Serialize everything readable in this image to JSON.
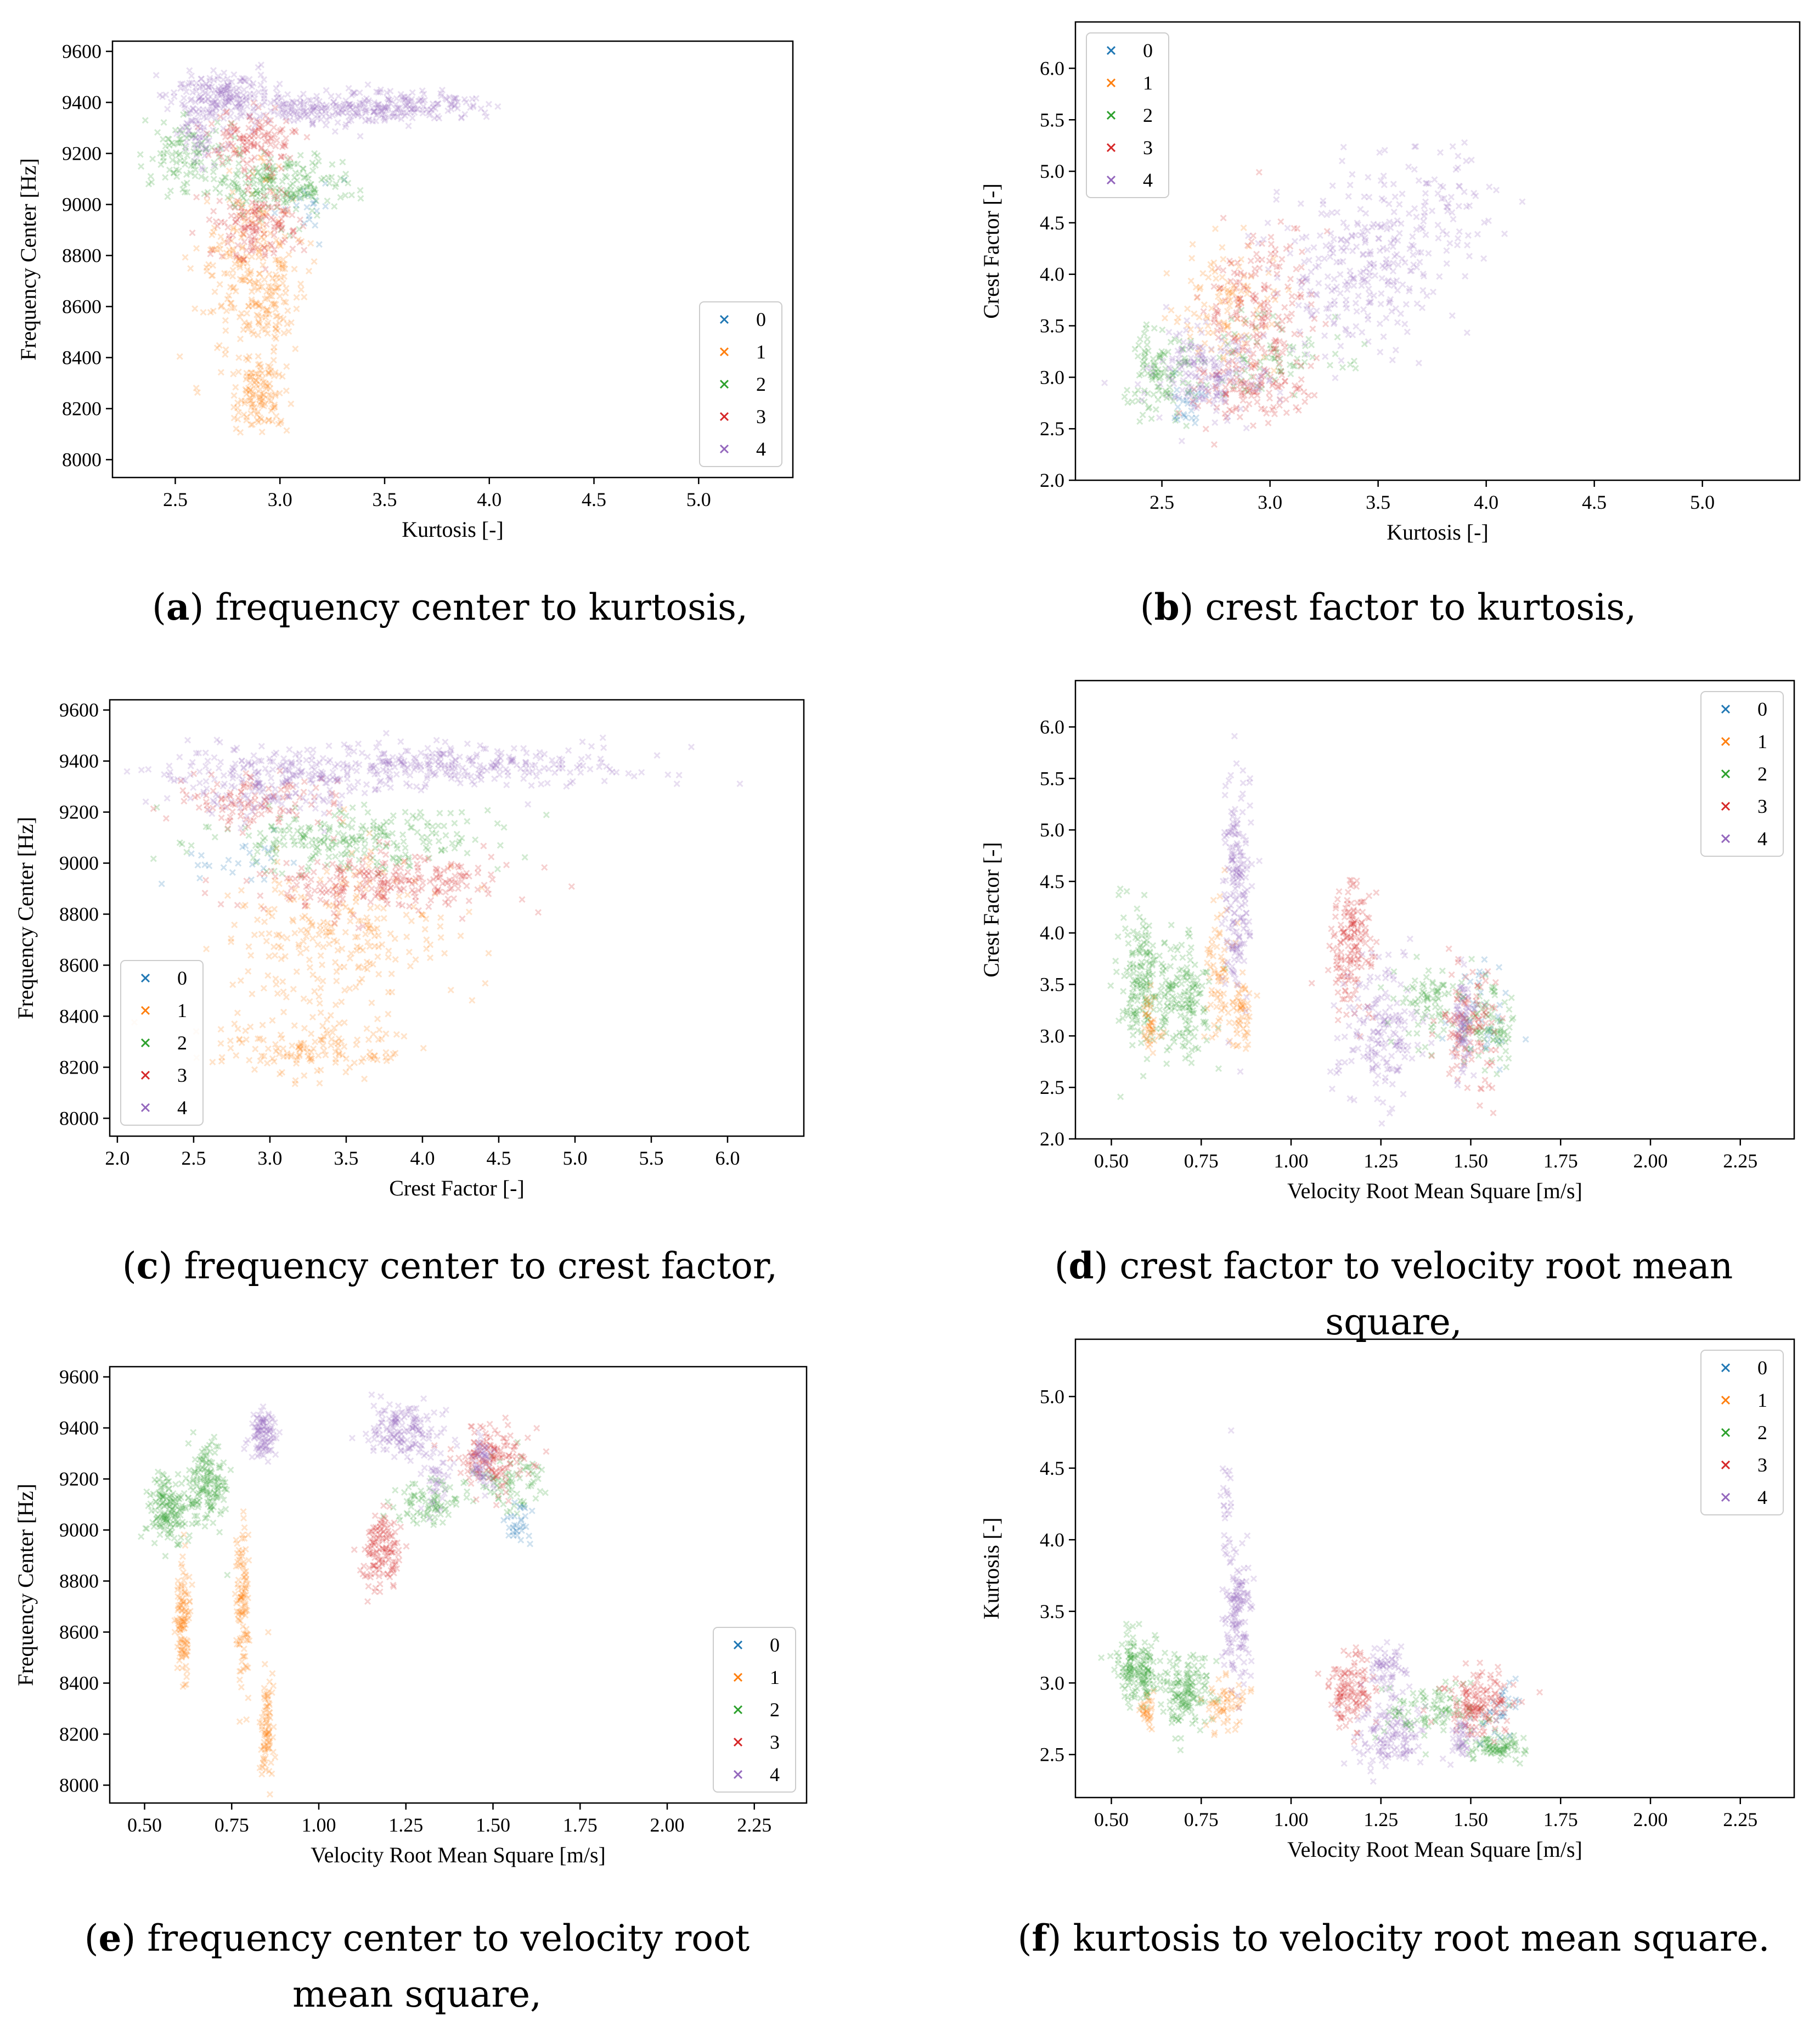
{
  "colors": {
    "0": "#1f77b4",
    "1": "#ff7f0e",
    "2": "#2ca02c",
    "3": "#d62728",
    "4": "#9467bd"
  },
  "chart_data": [
    {
      "id": "a",
      "type": "scatter",
      "xlabel": "Kurtosis [-]",
      "ylabel": "Frequency Center [Hz]",
      "xlim": [
        2.2,
        5.45
      ],
      "ylim": [
        7930,
        9640
      ],
      "xticks": [
        2.5,
        3.0,
        3.5,
        4.0,
        4.5,
        5.0
      ],
      "xtick_labels": [
        "2.5",
        "3.0",
        "3.5",
        "4.0",
        "4.5",
        "5.0"
      ],
      "yticks": [
        8000,
        8200,
        8400,
        8600,
        8800,
        9000,
        9200,
        9400,
        9600
      ],
      "ytick_labels": [
        "8000",
        "8200",
        "8400",
        "8600",
        "8800",
        "9000",
        "9200",
        "9400",
        "9600"
      ],
      "legend": {
        "position": "bottom-right",
        "entries": [
          "0",
          "1",
          "2",
          "3",
          "4"
        ]
      },
      "clusters": [
        {
          "cls": 1,
          "x": 2.86,
          "y": 8750,
          "sx": 0.13,
          "sy": 170,
          "n": 230
        },
        {
          "cls": 1,
          "x": 2.9,
          "y": 8250,
          "sx": 0.07,
          "sy": 70,
          "n": 120
        },
        {
          "cls": 1,
          "x": 2.95,
          "y": 8580,
          "sx": 0.06,
          "sy": 80,
          "n": 60
        },
        {
          "cls": 0,
          "x": 3.15,
          "y": 9000,
          "sx": 0.08,
          "sy": 60,
          "n": 20
        },
        {
          "cls": 2,
          "x": 2.55,
          "y": 9200,
          "sx": 0.1,
          "sy": 70,
          "n": 100
        },
        {
          "cls": 2,
          "x": 3.0,
          "y": 9080,
          "sx": 0.18,
          "sy": 60,
          "n": 200
        },
        {
          "cls": 3,
          "x": 2.9,
          "y": 8920,
          "sx": 0.1,
          "sy": 70,
          "n": 140
        },
        {
          "cls": 3,
          "x": 2.88,
          "y": 9250,
          "sx": 0.1,
          "sy": 60,
          "n": 130
        },
        {
          "cls": 4,
          "x": 2.75,
          "y": 9430,
          "sx": 0.15,
          "sy": 45,
          "n": 160
        },
        {
          "cls": 4,
          "x": 3.3,
          "y": 9380,
          "sx": 0.3,
          "sy": 35,
          "n": 260
        },
        {
          "cls": 4,
          "x": 3.75,
          "y": 9390,
          "sx": 0.15,
          "sy": 30,
          "n": 60
        },
        {
          "cls": 4,
          "x": 2.62,
          "y": 9300,
          "sx": 0.06,
          "sy": 80,
          "n": 80
        }
      ]
    },
    {
      "id": "b",
      "type": "scatter",
      "xlabel": "Kurtosis [-]",
      "ylabel": "Crest Factor [-]",
      "xlim": [
        2.1,
        5.45
      ],
      "ylim": [
        2.0,
        6.45
      ],
      "xticks": [
        2.5,
        3.0,
        3.5,
        4.0,
        4.5,
        5.0
      ],
      "xtick_labels": [
        "2.5",
        "3.0",
        "3.5",
        "4.0",
        "4.5",
        "5.0"
      ],
      "yticks": [
        2.0,
        2.5,
        3.0,
        3.5,
        4.0,
        4.5,
        5.0,
        5.5,
        6.0
      ],
      "ytick_labels": [
        "2.0",
        "2.5",
        "3.0",
        "3.5",
        "4.0",
        "4.5",
        "5.0",
        "5.5",
        "6.0"
      ],
      "legend": {
        "position": "top-left",
        "entries": [
          "0",
          "1",
          "2",
          "3",
          "4"
        ]
      },
      "clusters": [
        {
          "cls": 0,
          "x": 2.62,
          "y": 2.75,
          "sx": 0.05,
          "sy": 0.15,
          "n": 25
        },
        {
          "cls": 1,
          "x": 2.8,
          "y": 3.65,
          "sx": 0.12,
          "sy": 0.3,
          "n": 110
        },
        {
          "cls": 2,
          "x": 2.5,
          "y": 3.05,
          "sx": 0.07,
          "sy": 0.25,
          "n": 110
        },
        {
          "cls": 2,
          "x": 3.0,
          "y": 3.2,
          "sx": 0.18,
          "sy": 0.2,
          "n": 80
        },
        {
          "cls": 3,
          "x": 2.95,
          "y": 3.55,
          "sx": 0.13,
          "sy": 0.45,
          "n": 210
        },
        {
          "cls": 3,
          "x": 2.9,
          "y": 2.85,
          "sx": 0.12,
          "sy": 0.12,
          "n": 80
        },
        {
          "cls": 4,
          "x": 3.4,
          "y": 4.0,
          "sx": 0.2,
          "sy": 0.35,
          "n": 260
        },
        {
          "cls": 4,
          "x": 2.7,
          "y": 3.0,
          "sx": 0.14,
          "sy": 0.22,
          "n": 180
        },
        {
          "cls": 4,
          "x": 3.75,
          "y": 4.7,
          "sx": 0.18,
          "sy": 0.25,
          "n": 90
        }
      ]
    },
    {
      "id": "c",
      "type": "scatter",
      "xlabel": "Crest Factor [-]",
      "ylabel": "Frequency Center [Hz]",
      "xlim": [
        1.95,
        6.5
      ],
      "ylim": [
        7930,
        9640
      ],
      "xticks": [
        2.0,
        2.5,
        3.0,
        3.5,
        4.0,
        4.5,
        5.0,
        5.5,
        6.0
      ],
      "xtick_labels": [
        "2.0",
        "2.5",
        "3.0",
        "3.5",
        "4.0",
        "4.5",
        "5.0",
        "5.5",
        "6.0"
      ],
      "yticks": [
        8000,
        8200,
        8400,
        8600,
        8800,
        9000,
        9200,
        9400,
        9600
      ],
      "ytick_labels": [
        "8000",
        "8200",
        "8400",
        "8600",
        "8800",
        "9000",
        "9200",
        "9400",
        "9600"
      ],
      "legend": {
        "position": "bottom-left",
        "entries": [
          "0",
          "1",
          "2",
          "3",
          "4"
        ]
      },
      "clusters": [
        {
          "cls": 0,
          "x": 2.8,
          "y": 9000,
          "sx": 0.2,
          "sy": 50,
          "n": 25
        },
        {
          "cls": 1,
          "x": 3.4,
          "y": 8700,
          "sx": 0.35,
          "sy": 170,
          "n": 260
        },
        {
          "cls": 1,
          "x": 3.25,
          "y": 8270,
          "sx": 0.35,
          "sy": 60,
          "n": 140
        },
        {
          "cls": 2,
          "x": 3.5,
          "y": 9100,
          "sx": 0.5,
          "sy": 60,
          "n": 240
        },
        {
          "cls": 3,
          "x": 3.75,
          "y": 8920,
          "sx": 0.45,
          "sy": 60,
          "n": 250
        },
        {
          "cls": 3,
          "x": 2.9,
          "y": 9240,
          "sx": 0.3,
          "sy": 50,
          "n": 110
        },
        {
          "cls": 4,
          "x": 3.9,
          "y": 9380,
          "sx": 0.8,
          "sy": 45,
          "n": 380
        },
        {
          "cls": 4,
          "x": 3.0,
          "y": 9290,
          "sx": 0.3,
          "sy": 60,
          "n": 140
        }
      ]
    },
    {
      "id": "d",
      "type": "scatter",
      "xlabel": "Velocity Root Mean Square [m/s]",
      "ylabel": "Crest Factor [-]",
      "xlim": [
        0.4,
        2.4
      ],
      "ylim": [
        2.0,
        6.45
      ],
      "xticks": [
        0.5,
        0.75,
        1.0,
        1.25,
        1.5,
        1.75,
        2.0,
        2.25
      ],
      "xtick_labels": [
        "0.50",
        "0.75",
        "1.00",
        "1.25",
        "1.50",
        "1.75",
        "2.00",
        "2.25"
      ],
      "yticks": [
        2.0,
        2.5,
        3.0,
        3.5,
        4.0,
        4.5,
        5.0,
        5.5,
        6.0
      ],
      "ytick_labels": [
        "2.0",
        "2.5",
        "3.0",
        "3.5",
        "4.0",
        "4.5",
        "5.0",
        "5.5",
        "6.0"
      ],
      "legend": {
        "position": "top-right",
        "entries": [
          "0",
          "1",
          "2",
          "3",
          "4"
        ]
      },
      "clusters": [
        {
          "cls": 2,
          "x": 0.58,
          "y": 3.5,
          "sx": 0.03,
          "sy": 0.35,
          "n": 160
        },
        {
          "cls": 2,
          "x": 0.7,
          "y": 3.4,
          "sx": 0.04,
          "sy": 0.3,
          "n": 160
        },
        {
          "cls": 1,
          "x": 0.61,
          "y": 3.1,
          "sx": 0.01,
          "sy": 0.15,
          "n": 40
        },
        {
          "cls": 1,
          "x": 0.8,
          "y": 3.6,
          "sx": 0.02,
          "sy": 0.35,
          "n": 70
        },
        {
          "cls": 1,
          "x": 0.86,
          "y": 3.2,
          "sx": 0.015,
          "sy": 0.2,
          "n": 50
        },
        {
          "cls": 4,
          "x": 0.85,
          "y": 4.4,
          "sx": 0.02,
          "sy": 0.55,
          "n": 190
        },
        {
          "cls": 3,
          "x": 1.17,
          "y": 3.85,
          "sx": 0.03,
          "sy": 0.35,
          "n": 160
        },
        {
          "cls": 4,
          "x": 1.25,
          "y": 3.1,
          "sx": 0.06,
          "sy": 0.35,
          "n": 170
        },
        {
          "cls": 2,
          "x": 1.38,
          "y": 3.3,
          "sx": 0.05,
          "sy": 0.2,
          "n": 80
        },
        {
          "cls": 0,
          "x": 1.52,
          "y": 3.15,
          "sx": 0.04,
          "sy": 0.25,
          "n": 40
        },
        {
          "cls": 2,
          "x": 1.55,
          "y": 3.1,
          "sx": 0.04,
          "sy": 0.2,
          "n": 80
        },
        {
          "cls": 3,
          "x": 1.5,
          "y": 3.1,
          "sx": 0.04,
          "sy": 0.3,
          "n": 120
        },
        {
          "cls": 4,
          "x": 1.48,
          "y": 3.05,
          "sx": 0.015,
          "sy": 0.25,
          "n": 70
        }
      ]
    },
    {
      "id": "e",
      "type": "scatter",
      "xlabel": "Velocity Root Mean Square [m/s]",
      "ylabel": "Frequency Center [Hz]",
      "xlim": [
        0.4,
        2.4
      ],
      "ylim": [
        7930,
        9640
      ],
      "xticks": [
        0.5,
        0.75,
        1.0,
        1.25,
        1.5,
        1.75,
        2.0,
        2.25
      ],
      "xtick_labels": [
        "0.50",
        "0.75",
        "1.00",
        "1.25",
        "1.50",
        "1.75",
        "2.00",
        "2.25"
      ],
      "yticks": [
        8000,
        8200,
        8400,
        8600,
        8800,
        9000,
        9200,
        9400,
        9600
      ],
      "ytick_labels": [
        "8000",
        "8200",
        "8400",
        "8600",
        "8800",
        "9000",
        "9200",
        "9400",
        "9600"
      ],
      "legend": {
        "position": "bottom-right",
        "entries": [
          "0",
          "1",
          "2",
          "3",
          "4"
        ]
      },
      "clusters": [
        {
          "cls": 2,
          "x": 0.57,
          "y": 9080,
          "sx": 0.03,
          "sy": 70,
          "n": 150
        },
        {
          "cls": 2,
          "x": 0.68,
          "y": 9180,
          "sx": 0.03,
          "sy": 80,
          "n": 150
        },
        {
          "cls": 1,
          "x": 0.61,
          "y": 8640,
          "sx": 0.01,
          "sy": 140,
          "n": 110
        },
        {
          "cls": 1,
          "x": 0.78,
          "y": 8700,
          "sx": 0.012,
          "sy": 160,
          "n": 110
        },
        {
          "cls": 1,
          "x": 0.85,
          "y": 8230,
          "sx": 0.01,
          "sy": 110,
          "n": 80
        },
        {
          "cls": 4,
          "x": 0.84,
          "y": 9380,
          "sx": 0.02,
          "sy": 50,
          "n": 100
        },
        {
          "cls": 3,
          "x": 1.18,
          "y": 8920,
          "sx": 0.03,
          "sy": 70,
          "n": 130
        },
        {
          "cls": 4,
          "x": 1.25,
          "y": 9400,
          "sx": 0.05,
          "sy": 60,
          "n": 150
        },
        {
          "cls": 4,
          "x": 1.33,
          "y": 9200,
          "sx": 0.02,
          "sy": 60,
          "n": 40
        },
        {
          "cls": 2,
          "x": 1.32,
          "y": 9100,
          "sx": 0.06,
          "sy": 50,
          "n": 80
        },
        {
          "cls": 2,
          "x": 1.55,
          "y": 9180,
          "sx": 0.05,
          "sy": 50,
          "n": 70
        },
        {
          "cls": 0,
          "x": 1.57,
          "y": 9020,
          "sx": 0.02,
          "sy": 40,
          "n": 30
        },
        {
          "cls": 3,
          "x": 1.5,
          "y": 9290,
          "sx": 0.05,
          "sy": 60,
          "n": 140
        },
        {
          "cls": 4,
          "x": 1.47,
          "y": 9260,
          "sx": 0.015,
          "sy": 60,
          "n": 60
        }
      ]
    },
    {
      "id": "f",
      "type": "scatter",
      "xlabel": "Velocity Root Mean Square [m/s]",
      "ylabel": "Kurtosis [-]",
      "xlim": [
        0.4,
        2.4
      ],
      "ylim": [
        2.2,
        5.4
      ],
      "xticks": [
        0.5,
        0.75,
        1.0,
        1.25,
        1.5,
        1.75,
        2.0,
        2.25
      ],
      "xtick_labels": [
        "0.50",
        "0.75",
        "1.00",
        "1.25",
        "1.50",
        "1.75",
        "2.00",
        "2.25"
      ],
      "yticks": [
        2.5,
        3.0,
        3.5,
        4.0,
        4.5,
        5.0
      ],
      "ytick_labels": [
        "2.5",
        "3.0",
        "3.5",
        "4.0",
        "4.5",
        "5.0"
      ],
      "legend": {
        "position": "top-right",
        "entries": [
          "0",
          "1",
          "2",
          "3",
          "4"
        ]
      },
      "clusters": [
        {
          "cls": 2,
          "x": 0.57,
          "y": 3.1,
          "sx": 0.03,
          "sy": 0.12,
          "n": 150
        },
        {
          "cls": 2,
          "x": 0.7,
          "y": 2.95,
          "sx": 0.04,
          "sy": 0.12,
          "n": 150
        },
        {
          "cls": 1,
          "x": 0.6,
          "y": 2.8,
          "sx": 0.01,
          "sy": 0.05,
          "n": 30
        },
        {
          "cls": 1,
          "x": 0.82,
          "y": 2.85,
          "sx": 0.03,
          "sy": 0.1,
          "n": 60
        },
        {
          "cls": 4,
          "x": 0.85,
          "y": 3.5,
          "sx": 0.02,
          "sy": 0.25,
          "n": 140
        },
        {
          "cls": 4,
          "x": 0.82,
          "y": 4.15,
          "sx": 0.01,
          "sy": 0.2,
          "n": 25
        },
        {
          "cls": 3,
          "x": 1.17,
          "y": 2.95,
          "sx": 0.03,
          "sy": 0.12,
          "n": 120
        },
        {
          "cls": 4,
          "x": 1.27,
          "y": 3.1,
          "sx": 0.025,
          "sy": 0.1,
          "n": 60
        },
        {
          "cls": 4,
          "x": 1.27,
          "y": 2.65,
          "sx": 0.05,
          "sy": 0.12,
          "n": 130
        },
        {
          "cls": 2,
          "x": 1.4,
          "y": 2.8,
          "sx": 0.08,
          "sy": 0.1,
          "n": 100
        },
        {
          "cls": 2,
          "x": 1.58,
          "y": 2.55,
          "sx": 0.04,
          "sy": 0.05,
          "n": 80
        },
        {
          "cls": 0,
          "x": 1.58,
          "y": 2.8,
          "sx": 0.03,
          "sy": 0.1,
          "n": 30
        },
        {
          "cls": 3,
          "x": 1.52,
          "y": 2.85,
          "sx": 0.05,
          "sy": 0.12,
          "n": 150
        },
        {
          "cls": 4,
          "x": 1.48,
          "y": 2.6,
          "sx": 0.015,
          "sy": 0.08,
          "n": 40
        }
      ]
    }
  ],
  "captions": [
    {
      "letter": "a",
      "text": ") frequency center to kurtosis,"
    },
    {
      "letter": "b",
      "text": ") crest factor to kurtosis,"
    },
    {
      "letter": "c",
      "text": ") frequency center to crest factor,"
    },
    {
      "letter": "d",
      "text": ") crest factor to velocity root mean square,"
    },
    {
      "letter": "e",
      "text": ") frequency center to velocity root mean square,"
    },
    {
      "letter": "f",
      "text": ") kurtosis to velocity root mean square."
    }
  ]
}
